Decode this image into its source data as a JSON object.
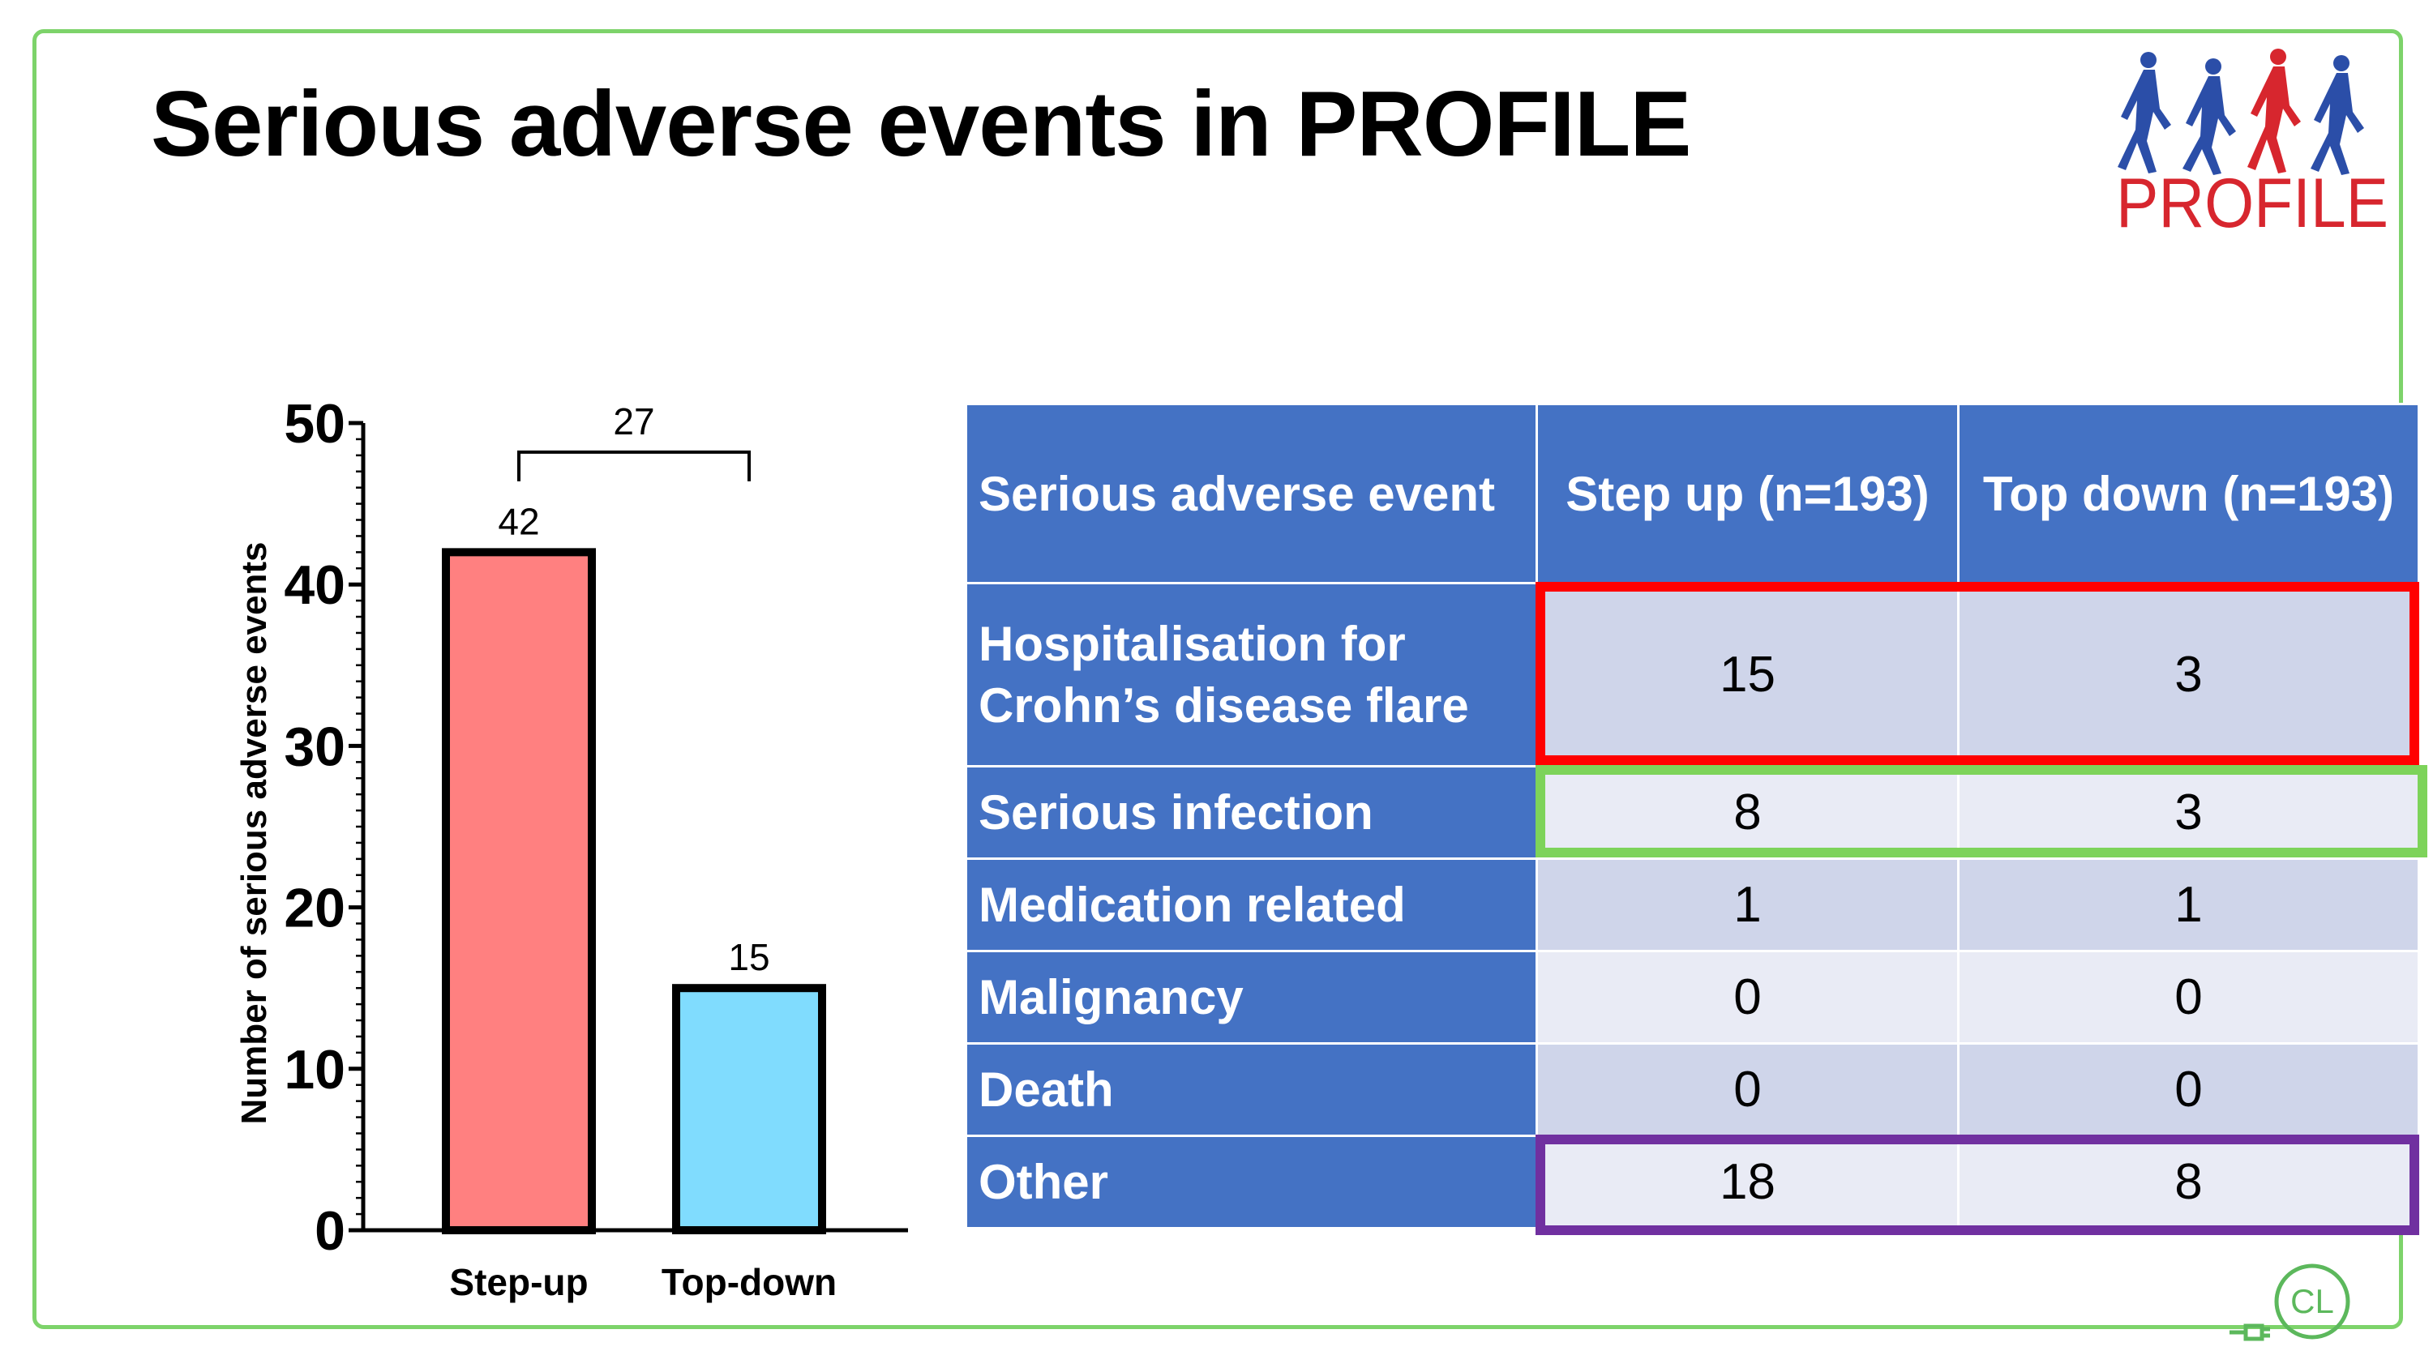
{
  "slide": {
    "title": "Serious adverse events in PROFILE"
  },
  "logo": {
    "text": "PROFILE",
    "text_color": "#d7262e",
    "figure_colors": [
      "#2b4ea8",
      "#2b4ea8",
      "#d7262e",
      "#2b4ea8"
    ]
  },
  "chart_data": {
    "type": "bar",
    "categories": [
      "Step-up",
      "Top-down"
    ],
    "values": [
      42,
      15
    ],
    "data_labels": [
      "42",
      "15"
    ],
    "colors": [
      "#ff8080",
      "#80dcfe"
    ],
    "ylabel": "Number of serious adverse events",
    "xlabel": "",
    "ylim": [
      0,
      50
    ],
    "yticks": [
      0,
      10,
      20,
      30,
      40,
      50
    ],
    "difference_bracket": {
      "between": [
        "Step-up",
        "Top-down"
      ],
      "label": "27"
    },
    "grid": false
  },
  "table": {
    "headers": [
      "Serious adverse event",
      "Step up (n=193)",
      "Top down (n=193)"
    ],
    "rows": [
      {
        "label_lines": [
          "Hospitalisation for",
          "Crohn’s disease flare"
        ],
        "step_up": "15",
        "top_down": "3"
      },
      {
        "label_lines": [
          "Serious infection"
        ],
        "step_up": "8",
        "top_down": "3"
      },
      {
        "label_lines": [
          "Medication related"
        ],
        "step_up": "1",
        "top_down": "1"
      },
      {
        "label_lines": [
          "Malignancy"
        ],
        "step_up": "0",
        "top_down": "0"
      },
      {
        "label_lines": [
          "Death"
        ],
        "step_up": "0",
        "top_down": "0"
      },
      {
        "label_lines": [
          "Other"
        ],
        "step_up": "18",
        "top_down": "8"
      }
    ],
    "header_color": "#4472c4",
    "highlights": [
      {
        "rows": [
          "Hospitalisation for Crohn’s disease flare"
        ],
        "color": "#ff0000"
      },
      {
        "rows": [
          "Serious infection"
        ],
        "color": "#7dd35a"
      },
      {
        "rows": [
          "Other"
        ],
        "color": "#7030a0"
      }
    ]
  },
  "footer_logo": {
    "text": "CL",
    "color": "#5cb85c"
  }
}
